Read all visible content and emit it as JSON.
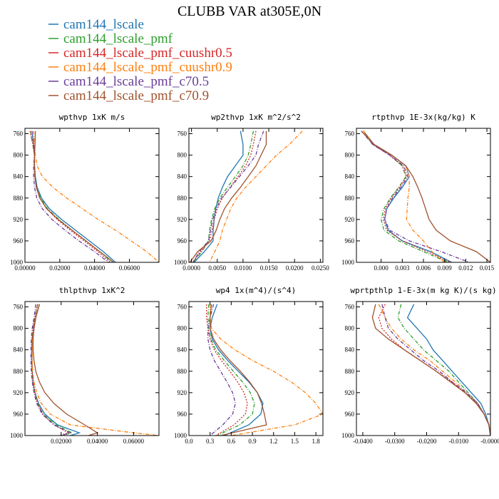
{
  "title": "CLUBB VAR at305E,0N",
  "legend": [
    {
      "label": "cam144_lscale",
      "color": "#1f77b4",
      "dash": "solid"
    },
    {
      "label": "cam144_lscale_pmf",
      "color": "#2ca02c",
      "dash": "dashdot"
    },
    {
      "label": "cam144_lscale_pmf_cuushr0.5",
      "color": "#d62728",
      "dash": "dotted"
    },
    {
      "label": "cam144_lscale_pmf_cuushr0.9",
      "color": "#ff7f0e",
      "dash": "dashdot"
    },
    {
      "label": "cam144_lscale_pmf_c70.5",
      "color": "#6a3d9a",
      "dash": "dashdot"
    },
    {
      "label": "cam144_lscale_pmf_c70.9",
      "color": "#a0522d",
      "dash": "solid"
    }
  ],
  "chart_data": [
    {
      "type": "line",
      "title": "wpthvp  1xK m/s",
      "xlim": [
        0,
        0.077
      ],
      "ylim": [
        750,
        1000
      ],
      "xticks": [
        0,
        0.02,
        0.04,
        0.06
      ],
      "xtick_labels": [
        "0.00000",
        "0.02000",
        "0.04000",
        "0.06000"
      ],
      "yticks": [
        760,
        800,
        840,
        880,
        920,
        960,
        1000
      ],
      "ytick_labels": [
        "760",
        "800",
        "840",
        "880",
        "920",
        "960",
        "1000"
      ],
      "y": [
        755,
        780,
        800,
        820,
        840,
        860,
        880,
        900,
        920,
        940,
        960,
        980,
        1000
      ],
      "series": [
        {
          "name": "cam144_lscale",
          "values": [
            0.004,
            0.005,
            0.0055,
            0.0055,
            0.006,
            0.007,
            0.0095,
            0.014,
            0.021,
            0.029,
            0.037,
            0.045,
            0.052
          ]
        },
        {
          "name": "cam144_lscale_pmf",
          "values": [
            0.003,
            0.0045,
            0.0055,
            0.0055,
            0.0058,
            0.0068,
            0.009,
            0.013,
            0.0195,
            0.027,
            0.035,
            0.043,
            0.05
          ]
        },
        {
          "name": "cam144_lscale_pmf_cuushr0.5",
          "values": [
            0.003,
            0.0045,
            0.0055,
            0.0055,
            0.0058,
            0.0066,
            0.0085,
            0.0125,
            0.0185,
            0.026,
            0.034,
            0.042,
            0.049
          ]
        },
        {
          "name": "cam144_lscale_pmf_cuushr0.9",
          "values": [
            0.005,
            0.0055,
            0.006,
            0.007,
            0.01,
            0.016,
            0.024,
            0.033,
            0.042,
            0.052,
            0.061,
            0.07,
            0.077
          ]
        },
        {
          "name": "cam144_lscale_pmf_c70.5",
          "values": [
            0.004,
            0.005,
            0.0055,
            0.005,
            0.005,
            0.0055,
            0.0068,
            0.01,
            0.0155,
            0.023,
            0.031,
            0.04,
            0.048
          ]
        },
        {
          "name": "cam144_lscale_pmf_c70.9",
          "values": [
            0.006,
            0.0058,
            0.0055,
            0.0055,
            0.0057,
            0.0065,
            0.0085,
            0.0125,
            0.019,
            0.027,
            0.035,
            0.043,
            0.051
          ]
        }
      ]
    },
    {
      "type": "line",
      "title": "wp2thvp  1xK m^2/s^2",
      "xlim": [
        -0.0005,
        0.0255
      ],
      "ylim": [
        750,
        1000
      ],
      "xticks": [
        0,
        0.005,
        0.01,
        0.015,
        0.02,
        0.025
      ],
      "xtick_labels": [
        "0.0000",
        "0.0050",
        "0.0100",
        "0.0150",
        "0.0200",
        "0.0250"
      ],
      "yticks": [
        760,
        800,
        840,
        880,
        920,
        960,
        1000
      ],
      "ytick_labels": [
        "760",
        "800",
        "840",
        "880",
        "920",
        "960",
        "1000"
      ],
      "y": [
        755,
        780,
        800,
        820,
        840,
        860,
        880,
        900,
        920,
        940,
        960,
        980,
        1000
      ],
      "series": [
        {
          "name": "cam144_lscale",
          "values": [
            0.0095,
            0.01,
            0.01,
            0.0085,
            0.007,
            0.006,
            0.0052,
            0.0047,
            0.0044,
            0.0042,
            0.0042,
            0.0025,
            0.0005
          ]
        },
        {
          "name": "cam144_lscale_pmf",
          "values": [
            0.012,
            0.0115,
            0.011,
            0.01,
            0.0085,
            0.007,
            0.0055,
            0.0045,
            0.0039,
            0.0035,
            0.0033,
            0.002,
            0.0003
          ]
        },
        {
          "name": "cam144_lscale_pmf_cuushr0.5",
          "values": [
            0.0125,
            0.012,
            0.0115,
            0.0105,
            0.009,
            0.0075,
            0.006,
            0.005,
            0.0044,
            0.004,
            0.0035,
            0.0018,
            0.0002
          ]
        },
        {
          "name": "cam144_lscale_pmf_cuushr0.9",
          "values": [
            0.0215,
            0.019,
            0.0165,
            0.0145,
            0.0125,
            0.0105,
            0.0088,
            0.0076,
            0.0068,
            0.006,
            0.0055,
            0.0045,
            0.0035
          ]
        },
        {
          "name": "cam144_lscale_pmf_c70.5",
          "values": [
            0.014,
            0.013,
            0.0125,
            0.011,
            0.0093,
            0.0076,
            0.0058,
            0.0048,
            0.0041,
            0.0037,
            0.0033,
            0.0015,
            0.0003
          ]
        },
        {
          "name": "cam144_lscale_pmf_c70.9",
          "values": [
            0.0145,
            0.0145,
            0.0135,
            0.0125,
            0.011,
            0.0095,
            0.0078,
            0.0064,
            0.0055,
            0.0048,
            0.0038,
            0.0012,
            -0.0003
          ]
        }
      ]
    },
    {
      "type": "line",
      "title": "rtpthvp  1E-3x(kg/kg) K",
      "xlim": [
        -0.0035,
        0.0155
      ],
      "ylim": [
        750,
        1000
      ],
      "xticks": [
        0,
        0.003,
        0.006,
        0.009,
        0.012,
        0.015
      ],
      "xtick_labels": [
        "0.000",
        "0.003",
        "0.006",
        "0.009",
        "0.012",
        "0.015"
      ],
      "yticks": [
        760,
        800,
        840,
        880,
        920,
        960,
        1000
      ],
      "ytick_labels": [
        "760",
        "800",
        "840",
        "880",
        "920",
        "960",
        "1000"
      ],
      "y": [
        755,
        780,
        800,
        820,
        840,
        860,
        880,
        900,
        920,
        940,
        960,
        980,
        1000
      ],
      "series": [
        {
          "name": "cam144_lscale",
          "values": [
            -0.0025,
            -0.001,
            0.0015,
            0.0035,
            0.004,
            0.003,
            0.0018,
            0.0008,
            0.0005,
            0.001,
            0.003,
            0.007,
            0.01
          ]
        },
        {
          "name": "cam144_lscale_pmf",
          "values": [
            -0.0025,
            -0.0012,
            0.0012,
            0.003,
            0.0035,
            0.0025,
            0.0013,
            0.0004,
            0.0,
            0.0004,
            0.0025,
            0.006,
            0.0095
          ]
        },
        {
          "name": "cam144_lscale_pmf_cuushr0.5",
          "values": [
            -0.0025,
            -0.0012,
            0.0012,
            0.003,
            0.0036,
            0.0026,
            0.0014,
            0.0006,
            0.0003,
            0.0008,
            0.003,
            0.0065,
            0.0098
          ]
        },
        {
          "name": "cam144_lscale_pmf_cuushr0.9",
          "values": [
            -0.0025,
            -0.001,
            0.0015,
            0.0035,
            0.004,
            0.004,
            0.0038,
            0.0037,
            0.0036,
            0.0045,
            0.006,
            0.0072,
            0.009
          ]
        },
        {
          "name": "cam144_lscale_pmf_c70.5",
          "values": [
            -0.0028,
            -0.0012,
            0.0012,
            0.0032,
            0.0038,
            0.0028,
            0.0016,
            0.0008,
            0.0005,
            0.0012,
            0.004,
            0.0085,
            0.0125
          ]
        },
        {
          "name": "cam144_lscale_pmf_c70.9",
          "values": [
            -0.0028,
            -0.001,
            0.0015,
            0.0035,
            0.0045,
            0.0052,
            0.0058,
            0.0063,
            0.0068,
            0.0078,
            0.0098,
            0.0135,
            0.0155
          ]
        }
      ]
    },
    {
      "type": "line",
      "title": "thlpthvp  1xK^2",
      "xlim": [
        0,
        0.074
      ],
      "ylim": [
        750,
        1000
      ],
      "xticks": [
        0.02,
        0.04,
        0.06
      ],
      "xtick_labels": [
        "0.02000",
        "0.04000",
        "0.06000"
      ],
      "yticks": [
        760,
        800,
        840,
        880,
        920,
        960,
        1000
      ],
      "ytick_labels": [
        "760",
        "800",
        "840",
        "880",
        "920",
        "960",
        "1000"
      ],
      "y": [
        755,
        780,
        800,
        820,
        840,
        860,
        880,
        900,
        920,
        940,
        960,
        980,
        995,
        1000
      ],
      "series": [
        {
          "name": "cam144_lscale",
          "values": [
            0.008,
            0.006,
            0.005,
            0.004,
            0.0038,
            0.0038,
            0.004,
            0.0045,
            0.0055,
            0.0075,
            0.011,
            0.018,
            0.03,
            0.025
          ]
        },
        {
          "name": "cam144_lscale_pmf",
          "values": [
            0.007,
            0.0055,
            0.0045,
            0.004,
            0.0038,
            0.0038,
            0.004,
            0.0045,
            0.0055,
            0.007,
            0.01,
            0.017,
            0.026,
            0.02
          ]
        },
        {
          "name": "cam144_lscale_pmf_cuushr0.5",
          "values": [
            0.007,
            0.0055,
            0.0045,
            0.004,
            0.0038,
            0.0038,
            0.004,
            0.0045,
            0.0055,
            0.007,
            0.01,
            0.016,
            0.024,
            0.019
          ]
        },
        {
          "name": "cam144_lscale_pmf_cuushr0.9",
          "values": [
            0.008,
            0.006,
            0.005,
            0.0042,
            0.004,
            0.004,
            0.0042,
            0.005,
            0.0065,
            0.009,
            0.014,
            0.025,
            0.06,
            0.074
          ]
        },
        {
          "name": "cam144_lscale_pmf_c70.5",
          "values": [
            0.006,
            0.005,
            0.004,
            0.0035,
            0.0033,
            0.0033,
            0.0035,
            0.004,
            0.005,
            0.0065,
            0.0095,
            0.016,
            0.025,
            0.02
          ]
        },
        {
          "name": "cam144_lscale_pmf_c70.9",
          "values": [
            0.008,
            0.006,
            0.005,
            0.0045,
            0.0045,
            0.005,
            0.006,
            0.008,
            0.011,
            0.016,
            0.023,
            0.033,
            0.04,
            0.035
          ]
        }
      ]
    },
    {
      "type": "line",
      "title": "wp4  1x(m^4)/(s^4)",
      "xlim": [
        0,
        1.9
      ],
      "ylim": [
        750,
        1000
      ],
      "xticks": [
        0.0,
        0.3,
        0.6,
        0.9,
        1.2,
        1.5,
        1.8
      ],
      "xtick_labels": [
        "0.0",
        "0.3",
        "0.6",
        "0.9",
        "1.2",
        "1.5",
        "1.8"
      ],
      "yticks": [
        760,
        800,
        840,
        880,
        920,
        960,
        1000
      ],
      "ytick_labels": [
        "760",
        "800",
        "840",
        "880",
        "920",
        "960",
        "1000"
      ],
      "y": [
        755,
        780,
        800,
        820,
        840,
        860,
        880,
        900,
        920,
        940,
        960,
        980,
        1000
      ],
      "series": [
        {
          "name": "cam144_lscale",
          "values": [
            0.4,
            0.33,
            0.3,
            0.33,
            0.42,
            0.55,
            0.7,
            0.85,
            0.97,
            1.05,
            1.02,
            0.85,
            0.5
          ]
        },
        {
          "name": "cam144_lscale_pmf",
          "values": [
            0.28,
            0.27,
            0.28,
            0.31,
            0.38,
            0.5,
            0.63,
            0.76,
            0.87,
            0.93,
            0.9,
            0.72,
            0.4
          ]
        },
        {
          "name": "cam144_lscale_pmf_cuushr0.5",
          "values": [
            0.25,
            0.25,
            0.27,
            0.3,
            0.36,
            0.46,
            0.58,
            0.69,
            0.78,
            0.83,
            0.8,
            0.64,
            0.38
          ]
        },
        {
          "name": "cam144_lscale_pmf_cuushr0.9",
          "values": [
            0.3,
            0.3,
            0.32,
            0.45,
            0.65,
            0.9,
            1.2,
            1.45,
            1.65,
            1.8,
            1.9,
            1.5,
            0.6
          ]
        },
        {
          "name": "cam144_lscale_pmf_c70.5",
          "values": [
            0.35,
            0.3,
            0.27,
            0.27,
            0.3,
            0.36,
            0.45,
            0.54,
            0.62,
            0.66,
            0.62,
            0.48,
            0.3
          ]
        },
        {
          "name": "cam144_lscale_pmf_c70.9",
          "values": [
            0.32,
            0.3,
            0.3,
            0.35,
            0.45,
            0.58,
            0.73,
            0.86,
            0.97,
            1.03,
            1.07,
            1.1,
            0.45
          ]
        }
      ]
    },
    {
      "type": "line",
      "title": "wprtpthlp  1-E-3x(m kg K)/(s kg)",
      "xlim": [
        -0.042,
        0
      ],
      "ylim": [
        750,
        1000
      ],
      "xticks": [
        -0.04,
        -0.03,
        -0.02,
        -0.01,
        0
      ],
      "xtick_labels": [
        "-0.0400",
        "-0.0300",
        "-0.0200",
        "-0.0100",
        "-0.0000"
      ],
      "yticks": [
        760,
        800,
        840,
        880,
        920,
        960,
        1000
      ],
      "ytick_labels": [
        "760",
        "800",
        "840",
        "880",
        "920",
        "960",
        "1000"
      ],
      "y": [
        755,
        780,
        800,
        820,
        840,
        860,
        880,
        900,
        920,
        940,
        960,
        980,
        1000
      ],
      "series": [
        {
          "name": "cam144_lscale",
          "values": [
            -0.024,
            -0.026,
            -0.023,
            -0.02,
            -0.018,
            -0.015,
            -0.012,
            -0.009,
            -0.006,
            -0.003,
            -0.0015,
            -0.0005,
            0.0
          ]
        },
        {
          "name": "cam144_lscale_pmf",
          "values": [
            -0.028,
            -0.029,
            -0.027,
            -0.024,
            -0.021,
            -0.017,
            -0.013,
            -0.01,
            -0.007,
            -0.004,
            -0.002,
            -0.0005,
            0.0
          ]
        },
        {
          "name": "cam144_lscale_pmf_cuushr0.5",
          "values": [
            -0.033,
            -0.035,
            -0.034,
            -0.031,
            -0.027,
            -0.022,
            -0.017,
            -0.012,
            -0.008,
            -0.004,
            -0.002,
            -0.0005,
            0.0
          ]
        },
        {
          "name": "cam144_lscale_pmf_cuushr0.9",
          "values": [
            -0.035,
            -0.033,
            -0.031,
            -0.028,
            -0.024,
            -0.019,
            -0.015,
            -0.011,
            -0.0075,
            -0.004,
            -0.002,
            -0.0005,
            0.0
          ]
        },
        {
          "name": "cam144_lscale_pmf_c70.5",
          "values": [
            -0.034,
            -0.033,
            -0.032,
            -0.029,
            -0.025,
            -0.021,
            -0.016,
            -0.012,
            -0.0075,
            -0.004,
            -0.002,
            -0.0005,
            0.0
          ]
        },
        {
          "name": "cam144_lscale_pmf_c70.9",
          "values": [
            -0.036,
            -0.037,
            -0.036,
            -0.032,
            -0.027,
            -0.022,
            -0.017,
            -0.0125,
            -0.008,
            -0.0045,
            -0.002,
            -0.0005,
            0.0
          ]
        }
      ]
    }
  ]
}
